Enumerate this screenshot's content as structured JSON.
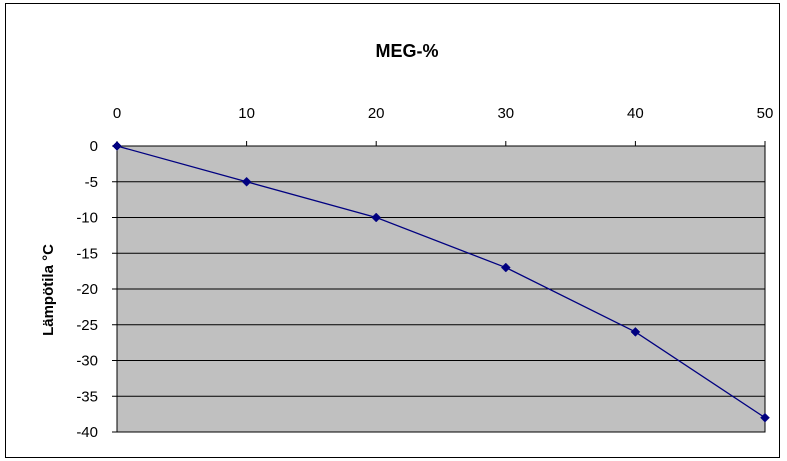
{
  "chart_data": {
    "type": "line",
    "title": "MEG-%",
    "xlabel": "",
    "ylabel": "Lämpötila °C",
    "x": [
      0,
      10,
      20,
      30,
      40,
      50
    ],
    "xlim": [
      0,
      50
    ],
    "ylim": [
      -40,
      0
    ],
    "x_axis_position": "top",
    "grid": "horizontal",
    "legend": "none",
    "x_ticks": [
      "0",
      "10",
      "20",
      "30",
      "40",
      "50"
    ],
    "y_ticks": [
      "0",
      "-5",
      "-10",
      "-15",
      "-20",
      "-25",
      "-30",
      "-35",
      "-40"
    ],
    "series": [
      {
        "values": [
          0,
          -5,
          -10,
          -17,
          -26,
          -38
        ],
        "color": "#000080",
        "marker": "diamond"
      }
    ],
    "colors": {
      "plot_background": "#c0c0c0",
      "line": "#000080",
      "grid": "#000000"
    }
  }
}
